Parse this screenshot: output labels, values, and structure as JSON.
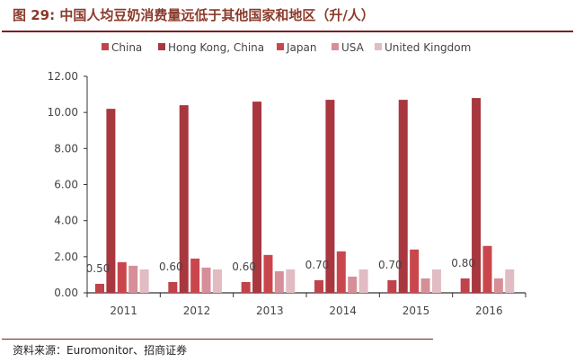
{
  "title": "图 29:  中国人均豆奶消费量远低于其他国家和地区（升/人）",
  "source": "资料来源：Euromonitor、招商证券",
  "chart_data": {
    "type": "bar",
    "title": "中国人均豆奶消费量远低于其他国家和地区（升/人）",
    "xlabel": "",
    "ylabel": "升/人",
    "ylim": [
      0,
      12
    ],
    "yticks": [
      "0.00",
      "2.00",
      "4.00",
      "6.00",
      "8.00",
      "10.00",
      "12.00"
    ],
    "categories": [
      "2011",
      "2012",
      "2013",
      "2014",
      "2015",
      "2016"
    ],
    "legend_position": "top",
    "grid": false,
    "series": [
      {
        "name": "China",
        "color": "#c0434a",
        "values": [
          0.5,
          0.6,
          0.6,
          0.7,
          0.7,
          0.8
        ],
        "labels": [
          "0.50",
          "0.60",
          "0.60",
          "0.70",
          "0.70",
          "0.80"
        ]
      },
      {
        "name": "Hong Kong, China",
        "color": "#a8373f",
        "values": [
          10.2,
          10.4,
          10.6,
          10.7,
          10.7,
          10.8
        ]
      },
      {
        "name": "Japan",
        "color": "#c9474c",
        "values": [
          1.7,
          1.9,
          2.1,
          2.3,
          2.4,
          2.6
        ]
      },
      {
        "name": "USA",
        "color": "#d68f98",
        "values": [
          1.5,
          1.4,
          1.2,
          0.9,
          0.8,
          0.8
        ]
      },
      {
        "name": "United Kingdom",
        "color": "#e1bcc2",
        "values": [
          1.3,
          1.3,
          1.3,
          1.3,
          1.3,
          1.3
        ]
      }
    ]
  }
}
